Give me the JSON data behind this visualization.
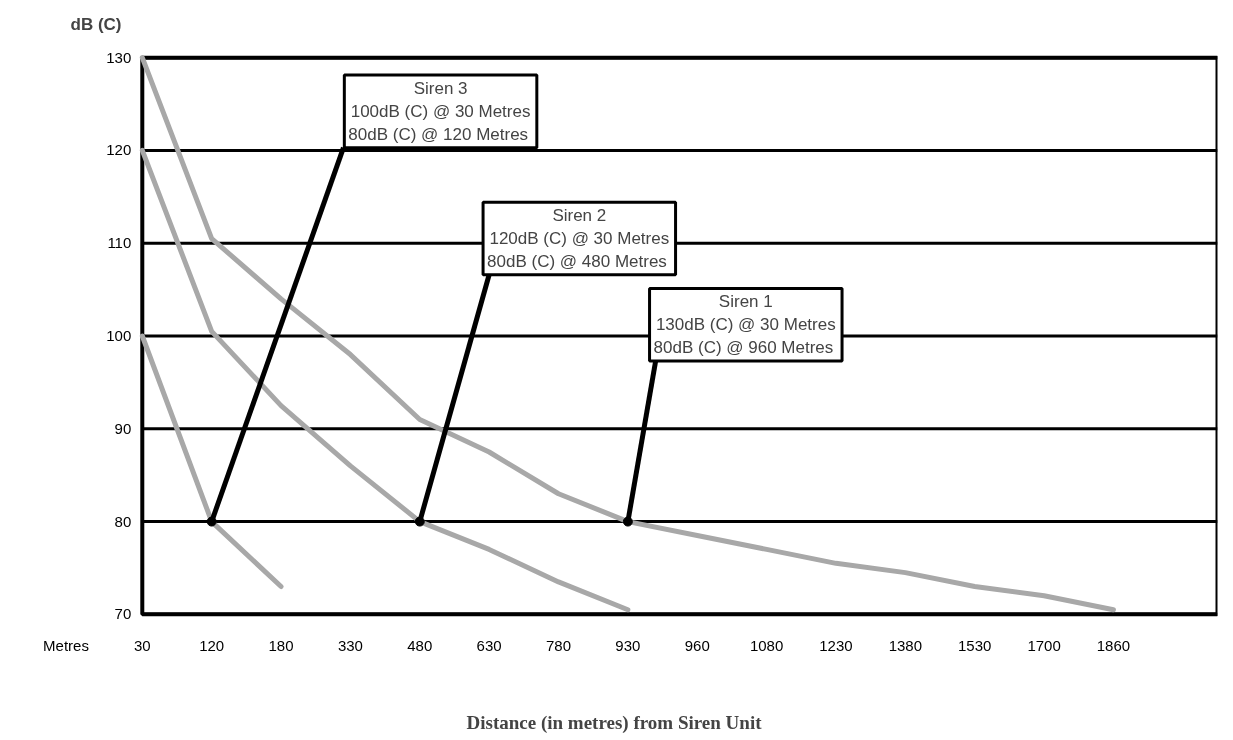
{
  "chart_data": {
    "type": "line",
    "xlabel": "Distance (in metres) from Siren Unit",
    "ylabel": "dB (C)",
    "categories": [
      "30",
      "120",
      "180",
      "330",
      "480",
      "630",
      "780",
      "930",
      "960",
      "1080",
      "1230",
      "1380",
      "1530",
      "1700",
      "1860"
    ],
    "series": [
      {
        "color": "#a8a8a8",
        "values": [
          130,
          110.5,
          104,
          98,
          91,
          87.5,
          83,
          80,
          78.5,
          77,
          75.5,
          74.5,
          73,
          72,
          70.5
        ]
      },
      {
        "color": "#a8a8a8",
        "values": [
          120,
          100.5,
          92.5,
          86,
          80,
          77,
          73.5,
          70.5,
          null,
          null,
          null,
          null,
          null,
          null,
          null
        ]
      },
      {
        "color": "#a8a8a8",
        "values": [
          100,
          80,
          73,
          null,
          null,
          null,
          null,
          null,
          null,
          null,
          null,
          null,
          null,
          null,
          null
        ]
      }
    ],
    "ylim": [
      70,
      130
    ],
    "yticks": [
      70,
      80,
      90,
      100,
      110,
      120,
      130
    ],
    "grid": "y",
    "annotations": [
      {
        "text": "Siren 3\n100dB (C) @ 30 Metres\n80dB (C) @  120 Metres",
        "x": "120",
        "y": 80
      },
      {
        "text": "Siren 2\n120dB (C) @ 30 Metres\n80dB (C) @  480 Metres",
        "x": "480",
        "y": 80
      },
      {
        "text": "Siren 1\n130dB (C) @ 30 Metres\n80dB (C) @  960 Metres",
        "x": "930",
        "y": 80
      },
      "Metres"
    ]
  }
}
